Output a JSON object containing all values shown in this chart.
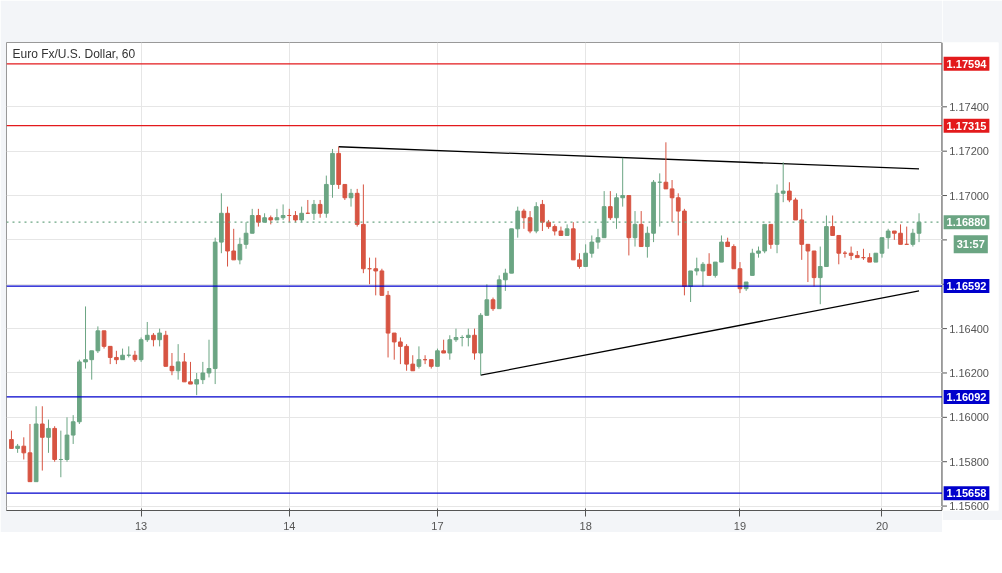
{
  "chart_data": {
    "type": "candlestick",
    "title": "Euro Fx/U.S. Dollar, 60",
    "categories": [
      null,
      null,
      null,
      null,
      null,
      null,
      null,
      null,
      null,
      null,
      null,
      null,
      null,
      null,
      null,
      null,
      null,
      null,
      null,
      null,
      null,
      "13",
      null,
      null,
      null,
      null,
      null,
      null,
      null,
      null,
      null,
      null,
      null,
      null,
      null,
      null,
      null,
      null,
      null,
      null,
      null,
      null,
      null,
      null,
      null,
      "14",
      null,
      null,
      null,
      null,
      null,
      null,
      null,
      null,
      null,
      null,
      null,
      null,
      null,
      null,
      null,
      null,
      null,
      null,
      null,
      null,
      null,
      null,
      null,
      "17",
      null,
      null,
      null,
      null,
      null,
      null,
      null,
      null,
      null,
      null,
      null,
      null,
      null,
      null,
      null,
      null,
      null,
      null,
      null,
      null,
      null,
      null,
      null,
      "18",
      null,
      null,
      null,
      null,
      null,
      null,
      null,
      null,
      null,
      null,
      null,
      null,
      null,
      null,
      null,
      null,
      null,
      null,
      null,
      null,
      null,
      null,
      null,
      null,
      "19",
      null,
      null,
      null,
      null,
      null,
      null,
      null,
      null,
      null,
      null,
      null,
      null,
      null,
      null,
      null,
      null,
      null,
      null,
      null,
      null,
      null,
      null,
      "20",
      null,
      null,
      null,
      null,
      null,
      null
    ],
    "ohlc": [
      [
        1.159,
        1.1594,
        1.1586,
        1.1586
      ],
      [
        1.1586,
        1.1588,
        1.1584,
        1.1587
      ],
      [
        1.1587,
        1.1591,
        1.1581,
        1.1584
      ],
      [
        1.1584,
        1.1597,
        1.1571,
        1.1571
      ],
      [
        1.1571,
        1.1605,
        1.1571,
        1.1597
      ],
      [
        1.1597,
        1.1605,
        1.1576,
        1.1591
      ],
      [
        1.1591,
        1.1599,
        1.1584,
        1.1595
      ],
      [
        1.1595,
        1.1596,
        1.158,
        1.1581
      ],
      [
        1.1581,
        1.1594,
        1.1573,
        1.1581
      ],
      [
        1.1581,
        1.16,
        1.158,
        1.1592
      ],
      [
        1.1592,
        1.1601,
        1.1588,
        1.1598
      ],
      [
        1.1598,
        1.1626,
        1.1597,
        1.1625
      ],
      [
        1.1625,
        1.165,
        1.1622,
        1.1626
      ],
      [
        1.1626,
        1.163,
        1.1617,
        1.163
      ],
      [
        1.163,
        1.1641,
        1.1629,
        1.1639
      ],
      [
        1.1639,
        1.1639,
        1.1631,
        1.1632
      ],
      [
        1.1632,
        1.1632,
        1.1624,
        1.1627
      ],
      [
        1.1627,
        1.163,
        1.1624,
        1.1626
      ],
      [
        1.1626,
        1.1631,
        1.1626,
        1.1628
      ],
      [
        1.1628,
        1.1632,
        1.1627,
        1.1628
      ],
      [
        1.1628,
        1.163,
        1.1625,
        1.1626
      ],
      [
        1.1626,
        1.1636,
        1.1625,
        1.1635
      ],
      [
        1.1635,
        1.1643,
        1.1634,
        1.1637
      ],
      [
        1.1637,
        1.1638,
        1.1632,
        1.1635
      ],
      [
        1.1635,
        1.164,
        1.1632,
        1.1638
      ],
      [
        1.1637,
        1.1639,
        1.1623,
        1.1623
      ],
      [
        1.1623,
        1.1629,
        1.1619,
        1.1621
      ],
      [
        1.1621,
        1.1633,
        1.1617,
        1.1625
      ],
      [
        1.1625,
        1.1629,
        1.1616,
        1.1616
      ],
      [
        1.1616,
        1.1625,
        1.1615,
        1.1615
      ],
      [
        1.1615,
        1.162,
        1.161,
        1.1617
      ],
      [
        1.1617,
        1.1625,
        1.1615,
        1.162
      ],
      [
        1.162,
        1.1635,
        1.1618,
        1.1622
      ],
      [
        1.1622,
        1.1681,
        1.1615,
        1.1679
      ],
      [
        1.1679,
        1.1701,
        1.1674,
        1.1692
      ],
      [
        1.1692,
        1.1695,
        1.1668,
        1.1675
      ],
      [
        1.1675,
        1.1685,
        1.1671,
        1.1671
      ],
      [
        1.1671,
        1.1681,
        1.1669,
        1.1678
      ],
      [
        1.1678,
        1.1688,
        1.1676,
        1.1683
      ],
      [
        1.1683,
        1.1694,
        1.1683,
        1.1691
      ],
      [
        1.1691,
        1.1694,
        1.1686,
        1.1688
      ],
      [
        1.1688,
        1.1692,
        1.1688,
        1.169
      ],
      [
        1.169,
        1.1691,
        1.1687,
        1.1689
      ],
      [
        1.1689,
        1.1694,
        1.1689,
        1.169
      ],
      [
        1.169,
        1.1696,
        1.1689,
        1.1691
      ],
      [
        1.1691,
        1.1694,
        1.1688,
        1.1691
      ],
      [
        1.1691,
        1.1693,
        1.1688,
        1.1689
      ],
      [
        1.1689,
        1.1695,
        1.1688,
        1.1692
      ],
      [
        1.1692,
        1.1698,
        1.1692,
        1.1692
      ],
      [
        1.1692,
        1.1698,
        1.1689,
        1.1696
      ],
      [
        1.1696,
        1.1698,
        1.169,
        1.1692
      ],
      [
        1.1692,
        1.1709,
        1.169,
        1.1705
      ],
      [
        1.1705,
        1.1721,
        1.1699,
        1.1719
      ],
      [
        1.1719,
        1.1722,
        1.1703,
        1.1705
      ],
      [
        1.1705,
        1.1705,
        1.1698,
        1.1699
      ],
      [
        1.1699,
        1.1703,
        1.1695,
        1.1701
      ],
      [
        1.1701,
        1.1703,
        1.1686,
        1.1687
      ],
      [
        1.1687,
        1.1705,
        1.1665,
        1.1667
      ],
      [
        1.1667,
        1.1672,
        1.166,
        1.1667
      ],
      [
        1.1667,
        1.1672,
        1.1655,
        1.1666
      ],
      [
        1.1666,
        1.1667,
        1.1655,
        1.1655
      ],
      [
        1.1655,
        1.1657,
        1.1627,
        1.1638
      ],
      [
        1.1638,
        1.1638,
        1.1626,
        1.1634
      ],
      [
        1.1634,
        1.1636,
        1.1624,
        1.1632
      ],
      [
        1.1632,
        1.1633,
        1.1621,
        1.1624
      ],
      [
        1.1624,
        1.1628,
        1.1621,
        1.1621
      ],
      [
        1.1623,
        1.1632,
        1.1622,
        1.1626
      ],
      [
        1.1626,
        1.1628,
        1.1624,
        1.1626
      ],
      [
        1.1626,
        1.1626,
        1.1622,
        1.1623
      ],
      [
        1.1623,
        1.1631,
        1.1623,
        1.163
      ],
      [
        1.163,
        1.1635,
        1.1629,
        1.1629
      ],
      [
        1.1629,
        1.1637,
        1.1626,
        1.1635
      ],
      [
        1.1635,
        1.164,
        1.1634,
        1.1636
      ],
      [
        1.1636,
        1.1637,
        1.1632,
        1.1636
      ],
      [
        1.1636,
        1.164,
        1.1632,
        1.1637
      ],
      [
        1.1637,
        1.164,
        1.1626,
        1.1629
      ],
      [
        1.1629,
        1.1647,
        1.1619,
        1.1646
      ],
      [
        1.1646,
        1.166,
        1.1646,
        1.1653
      ],
      [
        1.1653,
        1.1654,
        1.1648,
        1.1649
      ],
      [
        1.1649,
        1.1664,
        1.1649,
        1.1662
      ],
      [
        1.1662,
        1.1667,
        1.1657,
        1.1665
      ],
      [
        1.1665,
        1.1685,
        1.1665,
        1.1685
      ],
      [
        1.1685,
        1.1695,
        1.1681,
        1.1693
      ],
      [
        1.1693,
        1.1694,
        1.1685,
        1.169
      ],
      [
        1.169,
        1.1693,
        1.1683,
        1.1684
      ],
      [
        1.1684,
        1.1697,
        1.1683,
        1.1695
      ],
      [
        1.1696,
        1.1698,
        1.1684,
        1.1688
      ],
      [
        1.1688,
        1.1689,
        1.1685,
        1.1686
      ],
      [
        1.1686,
        1.1687,
        1.1682,
        1.1684
      ],
      [
        1.1684,
        1.1686,
        1.1682,
        1.1682
      ],
      [
        1.1682,
        1.1687,
        1.1682,
        1.1685
      ],
      [
        1.1685,
        1.1688,
        1.1671,
        1.1671
      ],
      [
        1.1671,
        1.1674,
        1.1667,
        1.1668
      ],
      [
        1.1668,
        1.1678,
        1.1668,
        1.1674
      ],
      [
        1.1674,
        1.1682,
        1.1672,
        1.1679
      ],
      [
        1.1679,
        1.1685,
        1.1676,
        1.1681
      ],
      [
        1.1681,
        1.1702,
        1.1681,
        1.1695
      ],
      [
        1.1695,
        1.1702,
        1.1689,
        1.169
      ],
      [
        1.169,
        1.1701,
        1.1685,
        1.1699
      ],
      [
        1.1699,
        1.1717,
        1.1695,
        1.17
      ],
      [
        1.17,
        1.17,
        1.1673,
        1.1681
      ],
      [
        1.1681,
        1.1693,
        1.1677,
        1.1687
      ],
      [
        1.1687,
        1.1693,
        1.1677,
        1.1677
      ],
      [
        1.1677,
        1.1686,
        1.1672,
        1.1683
      ],
      [
        1.1683,
        1.1707,
        1.1679,
        1.1706
      ],
      [
        1.1706,
        1.171,
        1.1686,
        1.1706
      ],
      [
        1.1706,
        1.1724,
        1.1703,
        1.1703
      ],
      [
        1.1703,
        1.1707,
        1.1688,
        1.1699
      ],
      [
        1.1699,
        1.1701,
        1.1682,
        1.1693
      ],
      [
        1.1693,
        1.1694,
        1.1655,
        1.1659
      ],
      [
        1.1659,
        1.1666,
        1.1652,
        1.1666
      ],
      [
        1.1666,
        1.1672,
        1.1664,
        1.1667
      ],
      [
        1.1666,
        1.167,
        1.1659,
        1.1669
      ],
      [
        1.1669,
        1.1674,
        1.1664,
        1.1664
      ],
      [
        1.1664,
        1.167,
        1.1663,
        1.167
      ],
      [
        1.167,
        1.1682,
        1.167,
        1.1679
      ],
      [
        1.1679,
        1.1681,
        1.1677,
        1.1677
      ],
      [
        1.1677,
        1.1678,
        1.1667,
        1.1667
      ],
      [
        1.1667,
        1.167,
        1.1656,
        1.1658
      ],
      [
        1.1658,
        1.1661,
        1.1657,
        1.1661
      ],
      [
        1.1664,
        1.1676,
        1.1664,
        1.1674
      ],
      [
        1.1674,
        1.1677,
        1.1672,
        1.1675
      ],
      [
        1.1675,
        1.1687,
        1.1674,
        1.1687
      ],
      [
        1.1687,
        1.1687,
        1.1676,
        1.1678
      ],
      [
        1.1678,
        1.1705,
        1.1674,
        1.1701
      ],
      [
        1.1701,
        1.1715,
        1.1697,
        1.1702
      ],
      [
        1.1702,
        1.1706,
        1.1697,
        1.1698
      ],
      [
        1.1698,
        1.1699,
        1.1689,
        1.1689
      ],
      [
        1.1689,
        1.1694,
        1.1671,
        1.1678
      ],
      [
        1.1678,
        1.1678,
        1.1661,
        1.1675
      ],
      [
        1.1675,
        1.1675,
        1.1659,
        1.1663
      ],
      [
        1.1663,
        1.1677,
        1.1651,
        1.1668
      ],
      [
        1.1668,
        1.1691,
        1.1668,
        1.1686
      ],
      [
        1.1686,
        1.1691,
        1.1682,
        1.1682
      ],
      [
        1.1682,
        1.1682,
        1.1669,
        1.1674
      ],
      [
        1.1674,
        1.1675,
        1.1672,
        1.1674
      ],
      [
        1.1674,
        1.1677,
        1.1671,
        1.1673
      ],
      [
        1.1673,
        1.1675,
        1.1672,
        1.1672
      ],
      [
        1.1672,
        1.1676,
        1.1671,
        1.1672
      ],
      [
        1.1672,
        1.1674,
        1.167,
        1.167
      ],
      [
        1.167,
        1.1674,
        1.167,
        1.1674
      ],
      [
        1.1674,
        1.1681,
        1.1672,
        1.1681
      ],
      [
        1.1681,
        1.1685,
        1.1676,
        1.1684
      ],
      [
        1.1684,
        1.1684,
        1.168,
        1.1683
      ],
      [
        1.1683,
        1.1687,
        1.1678,
        1.1678
      ],
      [
        1.1678,
        1.1686,
        1.1678,
        1.1678
      ],
      [
        1.1678,
        1.1685,
        1.1677,
        1.1683
      ],
      [
        1.1683,
        1.1692,
        1.1679,
        1.1688
      ]
    ],
    "colors": [
      "#d75442",
      "#6ba583",
      "#d75442",
      "#d75442",
      "#6ba583",
      "#d75442",
      "#6ba583",
      "#d75442",
      "#6ba583",
      "#6ba583",
      "#6ba583",
      "#6ba583",
      "#6ba583",
      "#6ba583",
      "#6ba583",
      "#d75442",
      "#d75442",
      "#d75442",
      "#6ba583",
      "#6ba583",
      "#d75442",
      "#6ba583",
      "#6ba583",
      "#d75442",
      "#6ba583",
      "#d75442",
      "#d75442",
      "#6ba583",
      "#d75442",
      "#d75442",
      "#6ba583",
      "#6ba583",
      "#6ba583",
      "#6ba583",
      "#6ba583",
      "#d75442",
      "#d75442",
      "#6ba583",
      "#6ba583",
      "#6ba583",
      "#d75442",
      "#6ba583",
      "#d75442",
      "#6ba583",
      "#6ba583",
      "#d75442",
      "#d75442",
      "#6ba583",
      "#d75442",
      "#6ba583",
      "#d75442",
      "#6ba583",
      "#6ba583",
      "#d75442",
      "#d75442",
      "#6ba583",
      "#d75442",
      "#d75442",
      "#d75442",
      "#d75442",
      "#d75442",
      "#d75442",
      "#d75442",
      "#d75442",
      "#d75442",
      "#d75442",
      "#6ba583",
      "#d75442",
      "#d75442",
      "#6ba583",
      "#d75442",
      "#6ba583",
      "#6ba583",
      "#6ba583",
      "#6ba583",
      "#d75442",
      "#6ba583",
      "#6ba583",
      "#d75442",
      "#6ba583",
      "#6ba583",
      "#6ba583",
      "#6ba583",
      "#d75442",
      "#d75442",
      "#6ba583",
      "#d75442",
      "#d75442",
      "#d75442",
      "#d75442",
      "#6ba583",
      "#d75442",
      "#d75442",
      "#6ba583",
      "#6ba583",
      "#6ba583",
      "#6ba583",
      "#d75442",
      "#6ba583",
      "#6ba583",
      "#d75442",
      "#6ba583",
      "#d75442",
      "#6ba583",
      "#6ba583",
      "#6ba583",
      "#d75442",
      "#d75442",
      "#d75442",
      "#d75442",
      "#6ba583",
      "#6ba583",
      "#6ba583",
      "#d75442",
      "#6ba583",
      "#6ba583",
      "#d75442",
      "#d75442",
      "#d75442",
      "#6ba583",
      "#6ba583",
      "#6ba583",
      "#6ba583",
      "#d75442",
      "#6ba583",
      "#6ba583",
      "#d75442",
      "#d75442",
      "#d75442",
      "#d75442",
      "#d75442",
      "#6ba583",
      "#6ba583",
      "#d75442",
      "#d75442",
      "#d75442",
      "#d75442",
      "#d75442",
      "#d75442",
      "#d75442",
      "#6ba583",
      "#6ba583",
      "#6ba583",
      "#d75442",
      "#d75442",
      "#d75442",
      "#6ba583",
      "#6ba583"
    ],
    "series": [
      {
        "type": "line",
        "values": [
          null,
          null,
          null,
          null,
          null,
          null,
          null,
          null,
          null,
          null,
          null,
          null,
          null,
          null,
          null,
          null,
          null,
          null,
          null,
          null,
          null,
          null,
          null,
          null,
          null,
          null,
          null,
          null,
          null,
          null,
          null,
          null,
          null,
          null,
          null,
          null,
          null,
          null,
          null,
          null,
          null,
          null,
          null,
          null,
          null,
          null,
          null,
          null,
          null,
          null,
          null,
          null,
          null,
          1.1722,
          null,
          null,
          null,
          null,
          null,
          null,
          null,
          null,
          null,
          null,
          null,
          null,
          null,
          null,
          null,
          null,
          null,
          null,
          null,
          null,
          null,
          null,
          null,
          null,
          null,
          null,
          null,
          null,
          null,
          null,
          null,
          null,
          null,
          null,
          null,
          null,
          null,
          null,
          null,
          null,
          null,
          null,
          null,
          null,
          null,
          null,
          null,
          null,
          null,
          null,
          null,
          null,
          null,
          null,
          null,
          null,
          null,
          null,
          null,
          null,
          null,
          null,
          null,
          null,
          null,
          null,
          null,
          null,
          null,
          null,
          null,
          null,
          null,
          null,
          null,
          null,
          null,
          null,
          null,
          null,
          null,
          null,
          null,
          null,
          null,
          null,
          null,
          null,
          null,
          null,
          null,
          null,
          null,
          1.1712
        ],
        "color": "#000000"
      },
      {
        "type": "line",
        "values": [
          null,
          null,
          null,
          null,
          null,
          null,
          null,
          null,
          null,
          null,
          null,
          null,
          null,
          null,
          null,
          null,
          null,
          null,
          null,
          null,
          null,
          null,
          null,
          null,
          null,
          null,
          null,
          null,
          null,
          null,
          null,
          null,
          null,
          null,
          null,
          null,
          null,
          null,
          null,
          null,
          null,
          null,
          null,
          null,
          null,
          null,
          null,
          null,
          null,
          null,
          null,
          null,
          null,
          null,
          null,
          null,
          null,
          null,
          null,
          null,
          null,
          null,
          null,
          null,
          null,
          null,
          null,
          null,
          null,
          null,
          null,
          null,
          null,
          null,
          null,
          null,
          1.1619,
          null,
          null,
          null,
          null,
          null,
          null,
          null,
          null,
          null,
          null,
          null,
          null,
          null,
          null,
          null,
          null,
          null,
          null,
          null,
          null,
          null,
          null,
          null,
          null,
          null,
          null,
          null,
          null,
          null,
          null,
          null,
          null,
          null,
          null,
          null,
          null,
          null,
          null,
          null,
          null,
          null,
          null,
          null,
          null,
          null,
          null,
          null,
          null,
          null,
          null,
          null,
          null,
          null,
          null,
          null,
          null,
          null,
          null,
          null,
          null,
          null,
          null,
          null,
          null,
          null,
          null,
          null,
          null,
          null,
          null,
          1.1657
        ],
        "color": "#000000"
      }
    ],
    "ylim": [
      1.1558,
      1.1769
    ],
    "yticks": [
      {
        "value": 1.156,
        "label": "1.15600"
      },
      {
        "value": 1.158,
        "label": "1.15800"
      },
      {
        "value": 1.16,
        "label": "1.16000"
      },
      {
        "value": 1.162,
        "label": "1.16200"
      },
      {
        "value": 1.164,
        "label": "1.16400"
      },
      {
        "value": 1.166,
        "label": null
      },
      {
        "value": 1.168,
        "label": null
      },
      {
        "value": 1.17,
        "label": "1.17000"
      },
      {
        "value": 1.172,
        "label": "1.17200"
      },
      {
        "value": 1.174,
        "label": "1.17400"
      }
    ],
    "ref_lines": [
      {
        "axis": "y",
        "value": 1.17594,
        "label": "1.17594",
        "color": "#e31a1c"
      },
      {
        "axis": "y",
        "value": 1.17315,
        "label": "1.17315",
        "color": "#e31a1c"
      },
      {
        "axis": "y",
        "value": 1.1688,
        "label": "1.16880",
        "color": "#6ba583",
        "line_style": "dotted"
      },
      {
        "axis": "y",
        "value": 1.16592,
        "label": "1.16592",
        "color": "#0000cc"
      },
      {
        "axis": "y",
        "value": 1.16092,
        "label": "1.16092",
        "color": "#0000cc"
      },
      {
        "axis": "y",
        "value": 1.15658,
        "label": "1.15658",
        "color": "#0000cc"
      }
    ],
    "annotations": [
      "31:57"
    ],
    "grid": true
  }
}
